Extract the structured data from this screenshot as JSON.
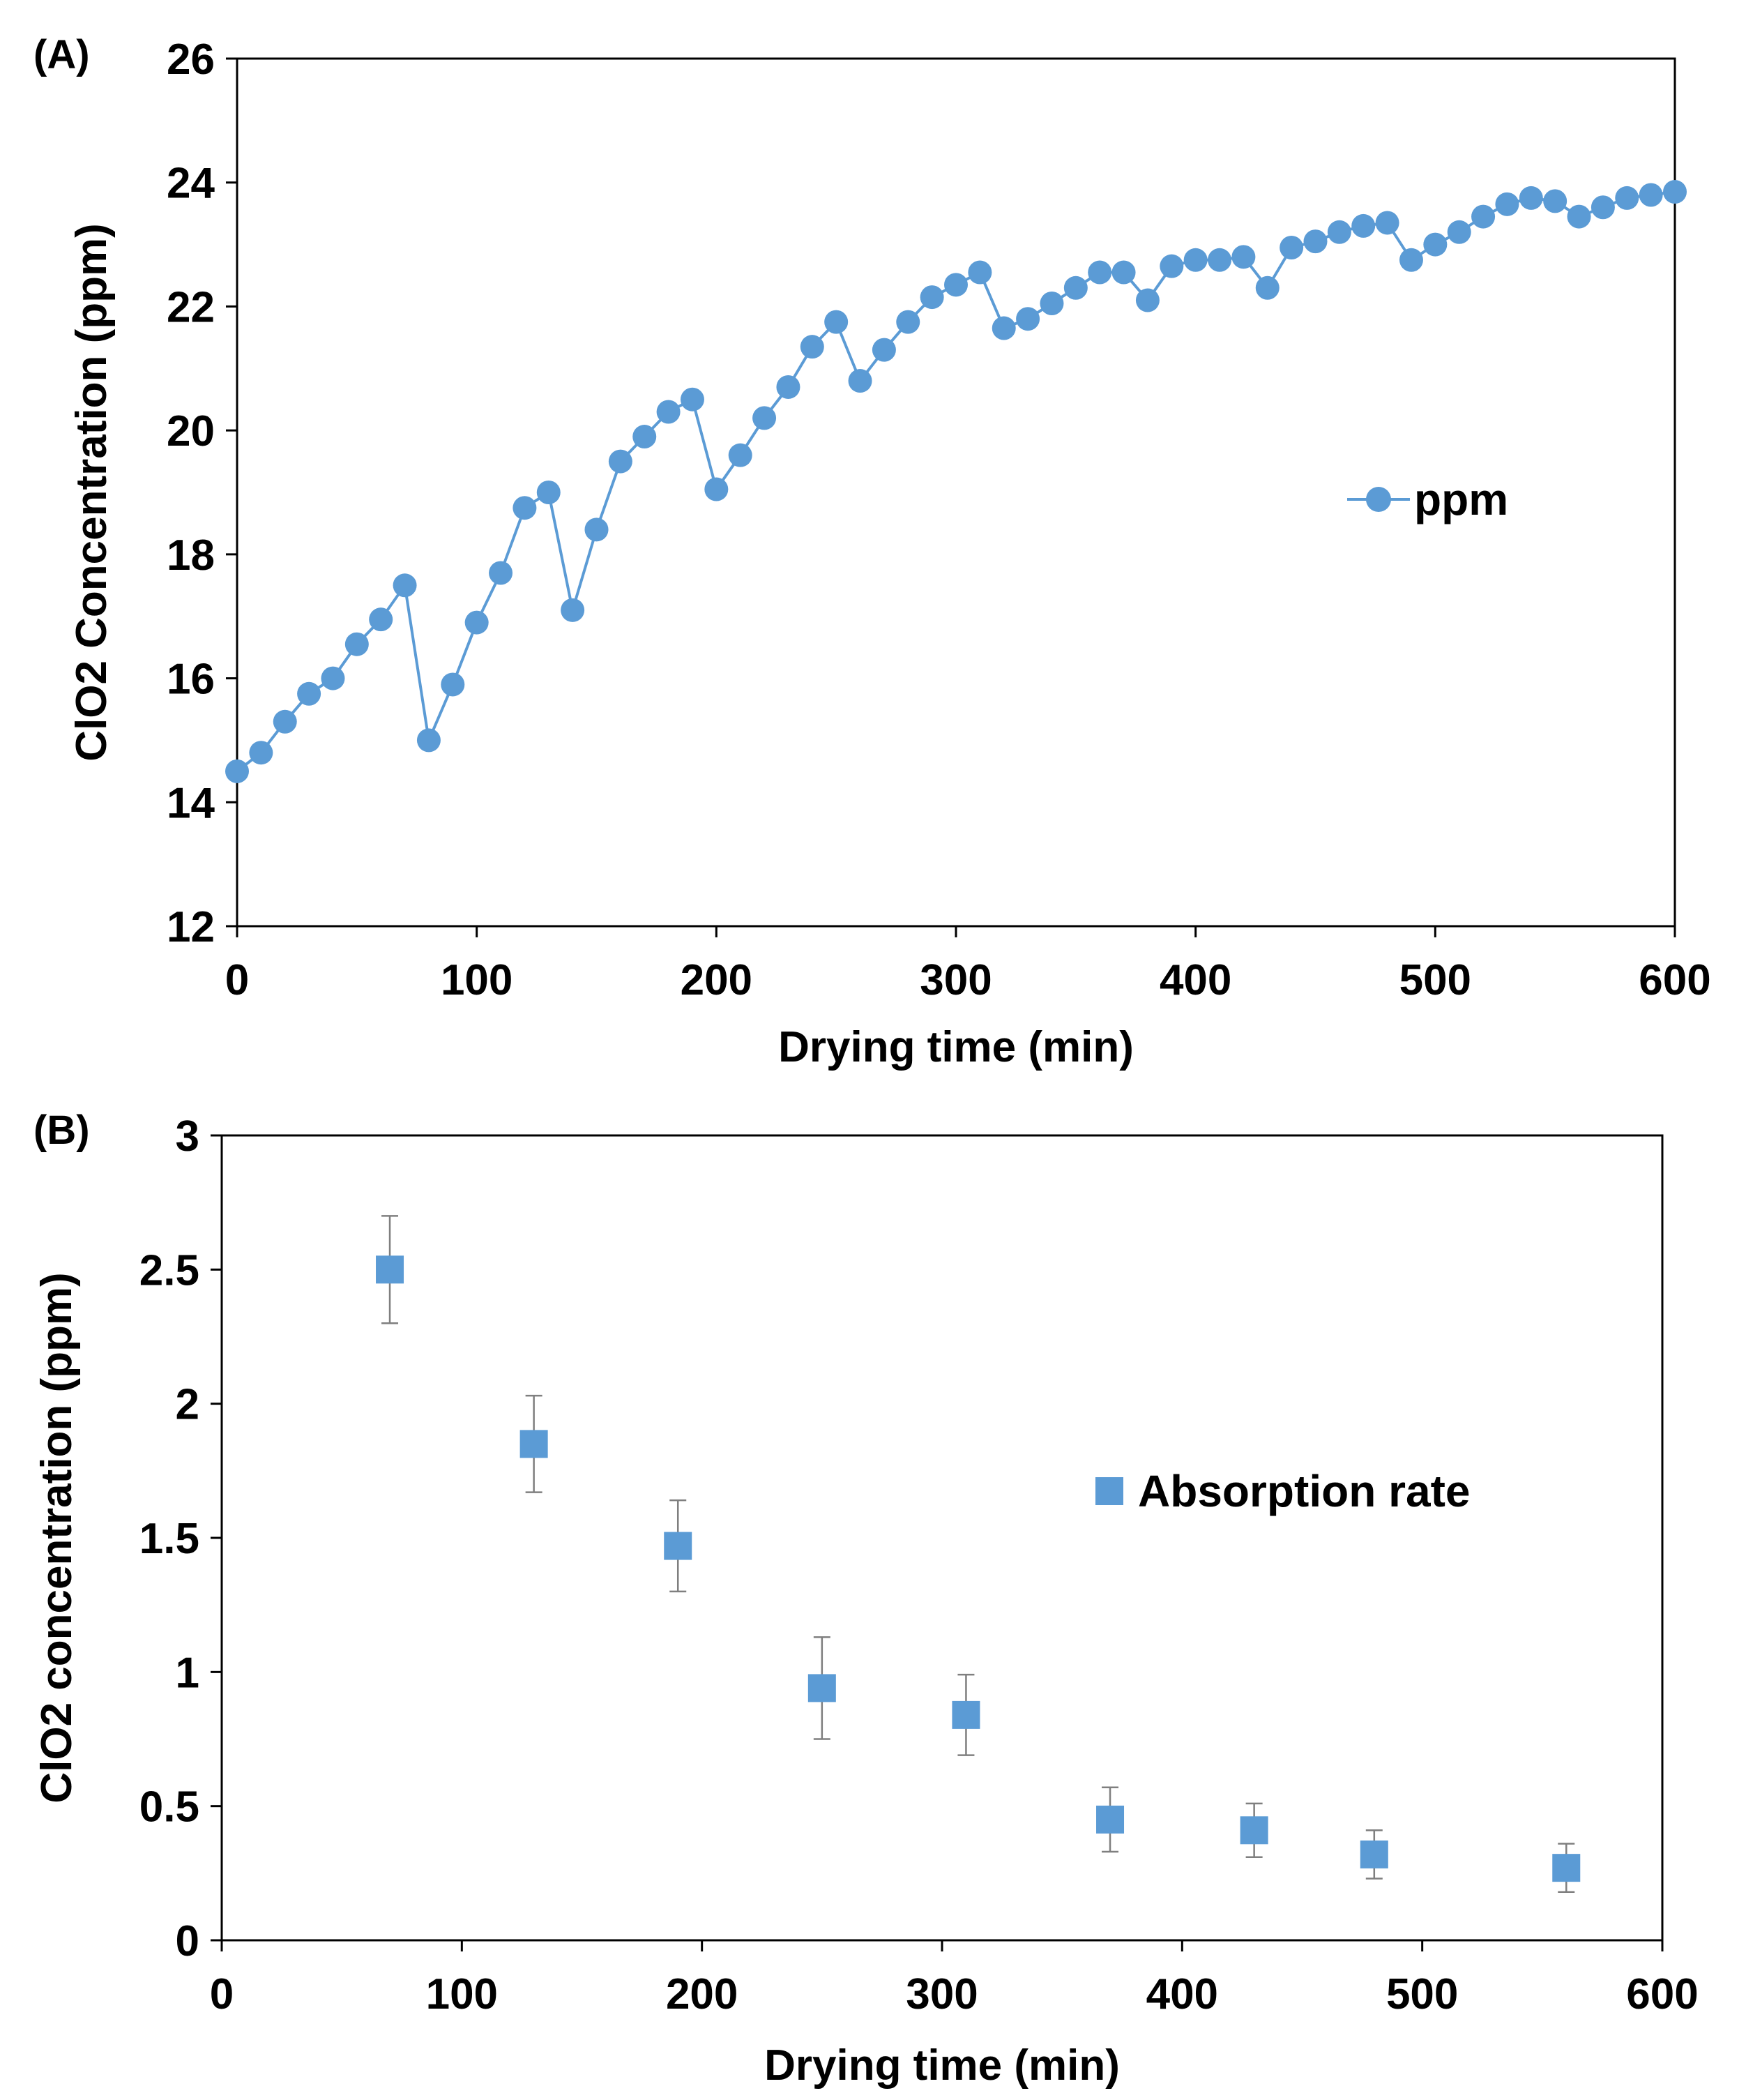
{
  "chart_data": [
    {
      "panel": "(A)",
      "type": "line",
      "title": "",
      "xlabel": "Drying time (min)",
      "ylabel": "ClO2 Concentration (ppm)",
      "xlim": [
        0,
        600
      ],
      "ylim": [
        12,
        26
      ],
      "xticks": [
        0,
        100,
        200,
        300,
        400,
        500,
        600
      ],
      "yticks": [
        12,
        14,
        16,
        18,
        20,
        22,
        24,
        26
      ],
      "grid": false,
      "legend_position": "right-middle",
      "color": "#5b9bd5",
      "series": [
        {
          "name": "ppm",
          "marker": "circle",
          "x": [
            0,
            10,
            20,
            30,
            40,
            50,
            60,
            70,
            80,
            90,
            100,
            110,
            120,
            130,
            140,
            150,
            160,
            170,
            180,
            190,
            200,
            210,
            220,
            230,
            240,
            250,
            260,
            270,
            280,
            290,
            300,
            310,
            320,
            330,
            340,
            350,
            360,
            370,
            380,
            390,
            400,
            410,
            420,
            430,
            440,
            450,
            460,
            470,
            480,
            490,
            500,
            510,
            520,
            530,
            540,
            550,
            560,
            570,
            580,
            590,
            600
          ],
          "values": [
            14.5,
            14.8,
            15.3,
            15.75,
            16.0,
            16.55,
            16.95,
            17.5,
            15.0,
            15.9,
            16.9,
            17.7,
            18.75,
            19.0,
            17.1,
            18.4,
            19.5,
            19.9,
            20.3,
            20.5,
            19.05,
            19.6,
            20.2,
            20.7,
            21.35,
            21.75,
            20.8,
            21.3,
            21.75,
            22.15,
            22.35,
            22.55,
            21.65,
            21.8,
            22.05,
            22.3,
            22.55,
            22.55,
            22.1,
            22.65,
            22.75,
            22.75,
            22.8,
            22.3,
            22.95,
            23.05,
            23.2,
            23.3,
            23.35,
            22.75,
            23.0,
            23.2,
            23.45,
            23.65,
            23.75,
            23.7,
            23.45,
            23.6,
            23.75,
            23.8,
            23.85
          ]
        }
      ]
    },
    {
      "panel": "(B)",
      "type": "scatter",
      "title": "",
      "xlabel": "Drying time (min)",
      "ylabel": "ClO2 concentration (ppm)",
      "xlim": [
        0,
        600
      ],
      "ylim": [
        0,
        3
      ],
      "xticks": [
        0,
        100,
        200,
        300,
        400,
        500,
        600
      ],
      "yticks": [
        0,
        0.5,
        1,
        1.5,
        2,
        2.5,
        3
      ],
      "grid": false,
      "legend_position": "right-middle",
      "color": "#5b9bd5",
      "series": [
        {
          "name": "Absorption rate",
          "marker": "square",
          "x": [
            70,
            130,
            190,
            250,
            310,
            370,
            430,
            480,
            560
          ],
          "values": [
            2.5,
            1.85,
            1.47,
            0.94,
            0.84,
            0.45,
            0.41,
            0.32,
            0.27
          ],
          "error": [
            0.2,
            0.18,
            0.17,
            0.19,
            0.15,
            0.12,
            0.1,
            0.09,
            0.09
          ]
        }
      ]
    }
  ]
}
